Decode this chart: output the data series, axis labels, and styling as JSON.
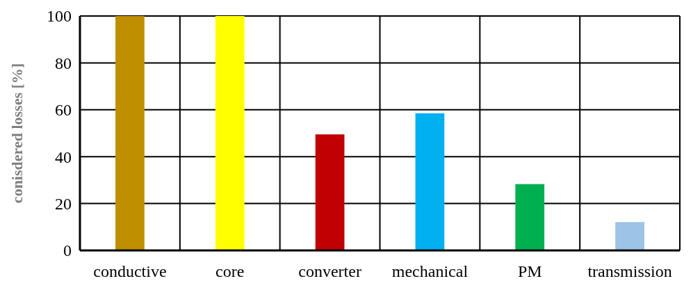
{
  "chart_data": {
    "type": "bar",
    "ylabel": "conisdered losses [%]",
    "categories": [
      "conductive",
      "core",
      "converter",
      "mechanical",
      "PM",
      "transmission"
    ],
    "values": [
      100,
      100,
      49.5,
      58.5,
      28.3,
      12.1
    ],
    "colors": [
      "#bf8f00",
      "#ffff00",
      "#c00000",
      "#00b0f0",
      "#00b050",
      "#9dc3e6"
    ],
    "ylim": [
      0,
      100
    ],
    "yticks": [
      0,
      20,
      40,
      60,
      80,
      100
    ],
    "grid": true
  }
}
